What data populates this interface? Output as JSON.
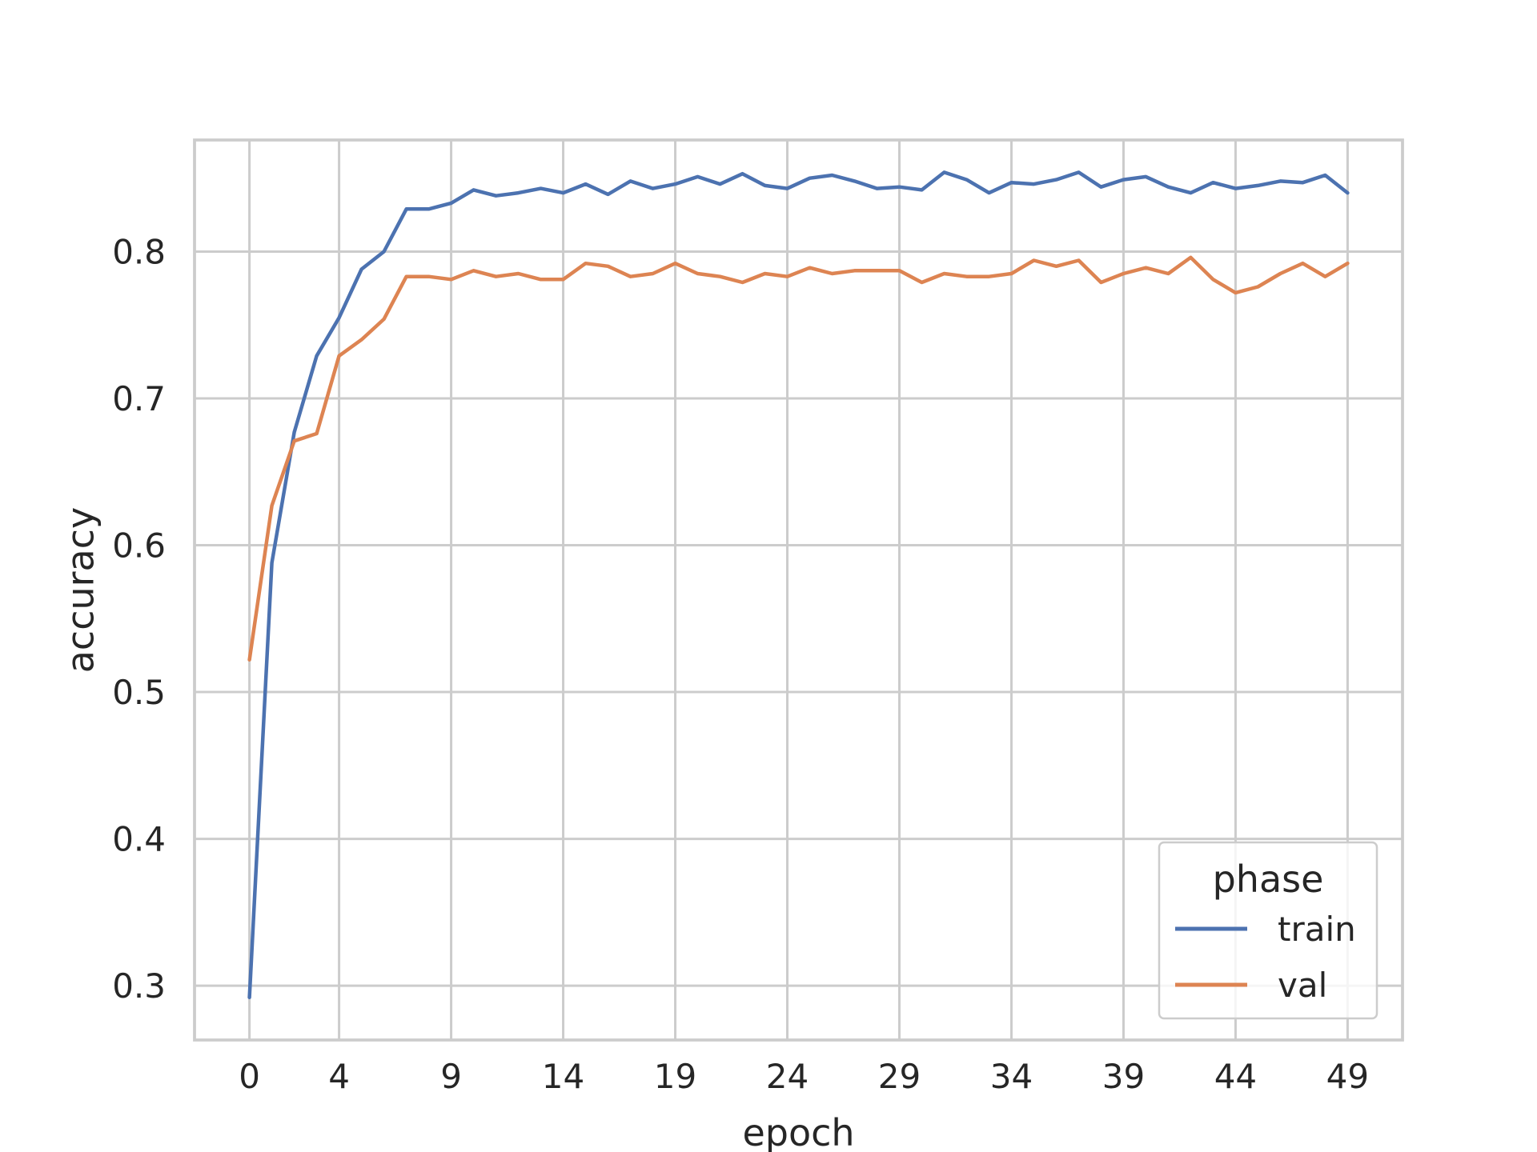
{
  "chart_data": {
    "type": "line",
    "xlabel": "epoch",
    "ylabel": "accuracy",
    "xlim": [
      -2.45,
      51.45
    ],
    "ylim": [
      0.263,
      0.876
    ],
    "xticks": [
      0,
      4,
      9,
      14,
      19,
      24,
      29,
      34,
      39,
      44,
      49
    ],
    "xtick_labels": [
      "0",
      "4",
      "9",
      "14",
      "19",
      "24",
      "29",
      "34",
      "39",
      "44",
      "49"
    ],
    "yticks": [
      0.3,
      0.4,
      0.5,
      0.6,
      0.7,
      0.8
    ],
    "ytick_labels": [
      "0.3",
      "0.4",
      "0.5",
      "0.6",
      "0.7",
      "0.8"
    ],
    "grid": true,
    "legend": {
      "title": "phase",
      "position": "lower-right"
    },
    "x": [
      0,
      1,
      2,
      3,
      4,
      5,
      6,
      7,
      8,
      9,
      10,
      11,
      12,
      13,
      14,
      15,
      16,
      17,
      18,
      19,
      20,
      21,
      22,
      23,
      24,
      25,
      26,
      27,
      28,
      29,
      30,
      31,
      32,
      33,
      34,
      35,
      36,
      37,
      38,
      39,
      40,
      41,
      42,
      43,
      44,
      45,
      46,
      47,
      48,
      49
    ],
    "series": [
      {
        "name": "train",
        "color": "#4c72b0",
        "values": [
          0.292,
          0.588,
          0.677,
          0.729,
          0.755,
          0.788,
          0.8,
          0.829,
          0.829,
          0.833,
          0.842,
          0.838,
          0.84,
          0.843,
          0.84,
          0.846,
          0.839,
          0.848,
          0.843,
          0.846,
          0.851,
          0.846,
          0.853,
          0.845,
          0.843,
          0.85,
          0.852,
          0.848,
          0.843,
          0.844,
          0.842,
          0.854,
          0.849,
          0.84,
          0.847,
          0.846,
          0.849,
          0.854,
          0.844,
          0.849,
          0.851,
          0.844,
          0.84,
          0.847,
          0.843,
          0.845,
          0.848,
          0.847,
          0.852,
          0.84
        ]
      },
      {
        "name": "val",
        "color": "#dd8452",
        "values": [
          0.522,
          0.627,
          0.671,
          0.676,
          0.729,
          0.74,
          0.754,
          0.783,
          0.783,
          0.781,
          0.787,
          0.783,
          0.785,
          0.781,
          0.781,
          0.792,
          0.79,
          0.783,
          0.785,
          0.792,
          0.785,
          0.783,
          0.779,
          0.785,
          0.783,
          0.789,
          0.785,
          0.787,
          0.787,
          0.787,
          0.779,
          0.785,
          0.783,
          0.783,
          0.785,
          0.794,
          0.79,
          0.794,
          0.779,
          0.785,
          0.789,
          0.785,
          0.796,
          0.781,
          0.772,
          0.776,
          0.785,
          0.792,
          0.783,
          0.792
        ]
      }
    ]
  }
}
